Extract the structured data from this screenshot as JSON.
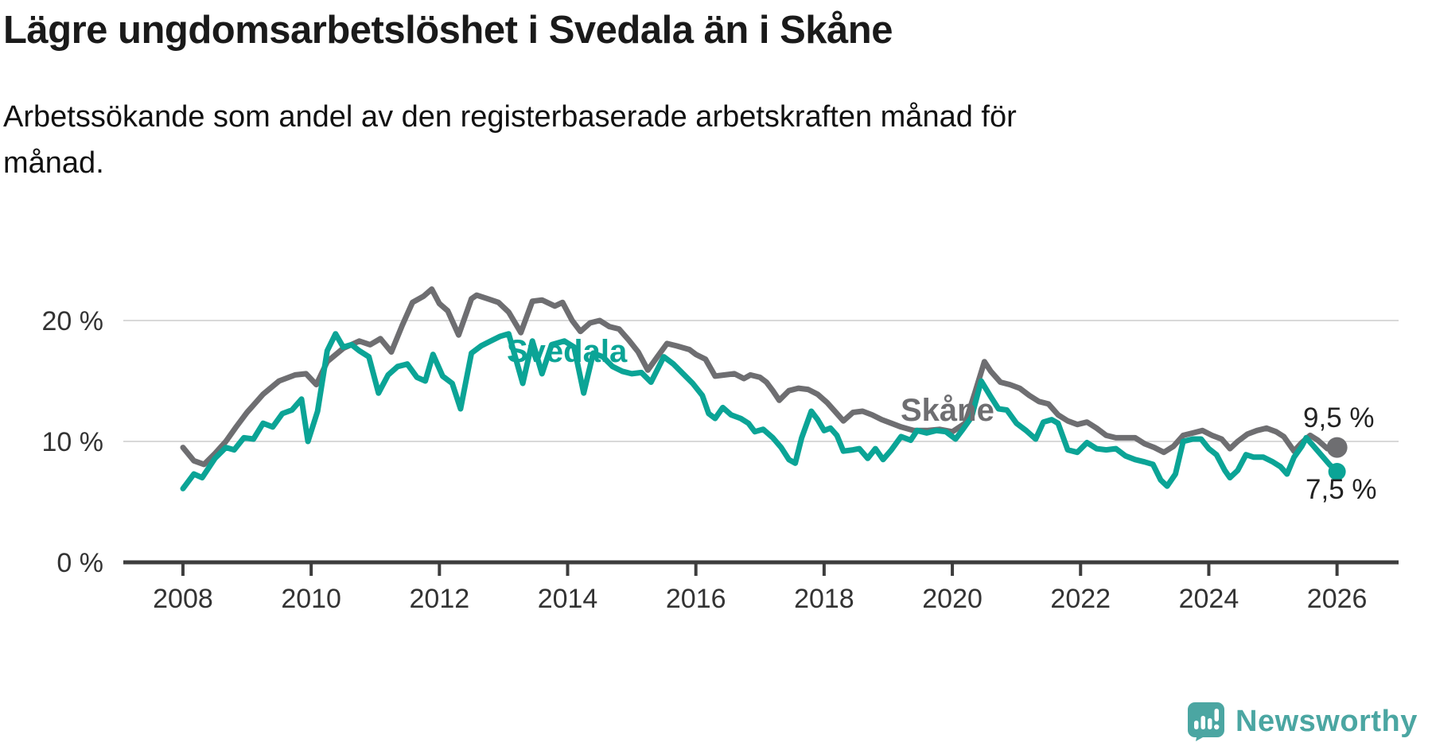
{
  "header": {
    "title": "Lägre ungdomsarbetslöshet i Svedala än i Skåne",
    "subtitle": "Arbetssökande som andel av den registerbaserade arbetskraften månad för månad.",
    "subtitle_lines": [
      "Arbetssökande som andel av den registerbaserade arbetskraften månad för",
      "månad."
    ]
  },
  "logo": {
    "text": "Newsworthy",
    "color": "#4ba6a2"
  },
  "colors": {
    "skane_line": "#6e6e71",
    "svedala_line": "#0ba496",
    "gridline": "#d9d9d9",
    "axis": "#3d3d3d",
    "tick_label": "#333333",
    "annotation_text": "#222222"
  },
  "chart_data": {
    "type": "line",
    "title": "Lägre ungdomsarbetslöshet i Svedala än i Skåne",
    "subtitle": "Arbetssökande som andel av den registerbaserade arbetskraften månad för månad.",
    "unit": "%",
    "grid": true,
    "legend_position": "inline-labels",
    "x_axis": {
      "ticks": [
        2008,
        2010,
        2012,
        2014,
        2016,
        2018,
        2020,
        2022,
        2024,
        2026
      ],
      "range": [
        2007.07,
        2026.96
      ]
    },
    "y_axis": {
      "ticks": [
        {
          "v": 0,
          "label": "0 %"
        },
        {
          "v": 10,
          "label": "10 %"
        },
        {
          "v": 20,
          "label": "20 %"
        }
      ],
      "gridlines": [
        10,
        20
      ],
      "range": [
        0,
        23.6
      ]
    },
    "series": [
      {
        "name": "Skåne",
        "line_label": "Skåne",
        "color": "#6e6e71",
        "end_label": "9,5 %",
        "end_value": 9.5,
        "points": [
          [
            2008.0,
            9.5
          ],
          [
            2008.17,
            8.4
          ],
          [
            2008.33,
            8.1
          ],
          [
            2008.5,
            9.0
          ],
          [
            2008.67,
            10.0
          ],
          [
            2008.83,
            11.2
          ],
          [
            2009.0,
            12.4
          ],
          [
            2009.25,
            13.9
          ],
          [
            2009.5,
            15.0
          ],
          [
            2009.75,
            15.5
          ],
          [
            2009.92,
            15.6
          ],
          [
            2010.08,
            14.7
          ],
          [
            2010.25,
            16.6
          ],
          [
            2010.5,
            17.7
          ],
          [
            2010.75,
            18.3
          ],
          [
            2010.92,
            18.0
          ],
          [
            2011.08,
            18.5
          ],
          [
            2011.25,
            17.4
          ],
          [
            2011.42,
            19.6
          ],
          [
            2011.58,
            21.5
          ],
          [
            2011.75,
            22.0
          ],
          [
            2011.88,
            22.6
          ],
          [
            2012.0,
            21.4
          ],
          [
            2012.13,
            20.8
          ],
          [
            2012.3,
            18.8
          ],
          [
            2012.5,
            21.8
          ],
          [
            2012.58,
            22.1
          ],
          [
            2012.75,
            21.8
          ],
          [
            2012.92,
            21.5
          ],
          [
            2013.08,
            20.7
          ],
          [
            2013.27,
            19.0
          ],
          [
            2013.45,
            21.6
          ],
          [
            2013.6,
            21.7
          ],
          [
            2013.8,
            21.2
          ],
          [
            2013.92,
            21.5
          ],
          [
            2014.07,
            20.0
          ],
          [
            2014.2,
            19.1
          ],
          [
            2014.35,
            19.8
          ],
          [
            2014.5,
            20.0
          ],
          [
            2014.65,
            19.5
          ],
          [
            2014.8,
            19.3
          ],
          [
            2014.95,
            18.4
          ],
          [
            2015.1,
            17.4
          ],
          [
            2015.25,
            15.9
          ],
          [
            2015.4,
            17.0
          ],
          [
            2015.55,
            18.1
          ],
          [
            2015.7,
            17.9
          ],
          [
            2015.9,
            17.6
          ],
          [
            2016.0,
            17.2
          ],
          [
            2016.15,
            16.8
          ],
          [
            2016.3,
            15.4
          ],
          [
            2016.45,
            15.5
          ],
          [
            2016.6,
            15.6
          ],
          [
            2016.75,
            15.2
          ],
          [
            2016.85,
            15.5
          ],
          [
            2017.0,
            15.3
          ],
          [
            2017.1,
            14.9
          ],
          [
            2017.2,
            14.2
          ],
          [
            2017.3,
            13.4
          ],
          [
            2017.45,
            14.2
          ],
          [
            2017.6,
            14.4
          ],
          [
            2017.75,
            14.3
          ],
          [
            2017.9,
            13.9
          ],
          [
            2018.05,
            13.2
          ],
          [
            2018.2,
            12.3
          ],
          [
            2018.3,
            11.7
          ],
          [
            2018.45,
            12.4
          ],
          [
            2018.6,
            12.5
          ],
          [
            2018.75,
            12.2
          ],
          [
            2018.9,
            11.8
          ],
          [
            2019.05,
            11.5
          ],
          [
            2019.2,
            11.2
          ],
          [
            2019.4,
            10.9
          ],
          [
            2019.6,
            10.9
          ],
          [
            2019.8,
            11.0
          ],
          [
            2020.0,
            10.8
          ],
          [
            2020.2,
            11.5
          ],
          [
            2020.35,
            14.0
          ],
          [
            2020.5,
            16.6
          ],
          [
            2020.6,
            15.8
          ],
          [
            2020.75,
            14.9
          ],
          [
            2020.9,
            14.7
          ],
          [
            2021.05,
            14.4
          ],
          [
            2021.2,
            13.8
          ],
          [
            2021.35,
            13.3
          ],
          [
            2021.5,
            13.1
          ],
          [
            2021.65,
            12.2
          ],
          [
            2021.8,
            11.7
          ],
          [
            2021.95,
            11.4
          ],
          [
            2022.1,
            11.6
          ],
          [
            2022.25,
            11.1
          ],
          [
            2022.4,
            10.5
          ],
          [
            2022.55,
            10.3
          ],
          [
            2022.7,
            10.3
          ],
          [
            2022.85,
            10.3
          ],
          [
            2023.0,
            9.8
          ],
          [
            2023.15,
            9.5
          ],
          [
            2023.3,
            9.1
          ],
          [
            2023.45,
            9.6
          ],
          [
            2023.6,
            10.5
          ],
          [
            2023.75,
            10.7
          ],
          [
            2023.9,
            10.9
          ],
          [
            2024.05,
            10.5
          ],
          [
            2024.2,
            10.2
          ],
          [
            2024.33,
            9.4
          ],
          [
            2024.45,
            10.0
          ],
          [
            2024.6,
            10.6
          ],
          [
            2024.75,
            10.9
          ],
          [
            2024.9,
            11.1
          ],
          [
            2025.05,
            10.8
          ],
          [
            2025.17,
            10.4
          ],
          [
            2025.33,
            9.2
          ],
          [
            2025.45,
            9.9
          ],
          [
            2025.58,
            10.5
          ],
          [
            2025.7,
            10.1
          ],
          [
            2025.85,
            9.4
          ],
          [
            2026.0,
            9.5
          ]
        ]
      },
      {
        "name": "Svedala",
        "line_label": "Svedala",
        "color": "#0ba496",
        "end_label": "7,5 %",
        "end_value": 7.5,
        "points": [
          [
            2008.0,
            6.1
          ],
          [
            2008.17,
            7.3
          ],
          [
            2008.3,
            7.0
          ],
          [
            2008.5,
            8.6
          ],
          [
            2008.67,
            9.5
          ],
          [
            2008.8,
            9.3
          ],
          [
            2008.95,
            10.3
          ],
          [
            2009.1,
            10.2
          ],
          [
            2009.25,
            11.5
          ],
          [
            2009.4,
            11.2
          ],
          [
            2009.55,
            12.3
          ],
          [
            2009.7,
            12.6
          ],
          [
            2009.85,
            13.5
          ],
          [
            2009.95,
            10.0
          ],
          [
            2010.1,
            12.5
          ],
          [
            2010.25,
            17.5
          ],
          [
            2010.38,
            18.9
          ],
          [
            2010.5,
            17.8
          ],
          [
            2010.63,
            18.0
          ],
          [
            2010.75,
            17.5
          ],
          [
            2010.9,
            17.0
          ],
          [
            2011.05,
            14.0
          ],
          [
            2011.2,
            15.5
          ],
          [
            2011.35,
            16.2
          ],
          [
            2011.5,
            16.4
          ],
          [
            2011.65,
            15.3
          ],
          [
            2011.78,
            15.0
          ],
          [
            2011.9,
            17.2
          ],
          [
            2012.05,
            15.4
          ],
          [
            2012.2,
            14.8
          ],
          [
            2012.33,
            12.7
          ],
          [
            2012.5,
            17.3
          ],
          [
            2012.65,
            17.9
          ],
          [
            2012.8,
            18.3
          ],
          [
            2012.95,
            18.7
          ],
          [
            2013.08,
            18.9
          ],
          [
            2013.3,
            14.8
          ],
          [
            2013.45,
            18.3
          ],
          [
            2013.6,
            15.6
          ],
          [
            2013.75,
            18.0
          ],
          [
            2013.95,
            18.3
          ],
          [
            2014.1,
            17.8
          ],
          [
            2014.25,
            14.0
          ],
          [
            2014.4,
            17.3
          ],
          [
            2014.55,
            17.0
          ],
          [
            2014.7,
            16.2
          ],
          [
            2014.85,
            15.8
          ],
          [
            2015.0,
            15.6
          ],
          [
            2015.15,
            15.7
          ],
          [
            2015.3,
            14.9
          ],
          [
            2015.5,
            17.0
          ],
          [
            2015.65,
            16.4
          ],
          [
            2015.8,
            15.6
          ],
          [
            2015.95,
            14.8
          ],
          [
            2016.1,
            13.8
          ],
          [
            2016.2,
            12.3
          ],
          [
            2016.3,
            11.9
          ],
          [
            2016.42,
            12.8
          ],
          [
            2016.55,
            12.2
          ],
          [
            2016.7,
            11.9
          ],
          [
            2016.82,
            11.5
          ],
          [
            2016.92,
            10.8
          ],
          [
            2017.05,
            11.0
          ],
          [
            2017.2,
            10.3
          ],
          [
            2017.33,
            9.5
          ],
          [
            2017.45,
            8.5
          ],
          [
            2017.55,
            8.2
          ],
          [
            2017.65,
            10.3
          ],
          [
            2017.8,
            12.5
          ],
          [
            2017.9,
            11.8
          ],
          [
            2018.0,
            10.9
          ],
          [
            2018.1,
            11.1
          ],
          [
            2018.2,
            10.5
          ],
          [
            2018.3,
            9.2
          ],
          [
            2018.45,
            9.3
          ],
          [
            2018.55,
            9.4
          ],
          [
            2018.68,
            8.6
          ],
          [
            2018.8,
            9.4
          ],
          [
            2018.92,
            8.5
          ],
          [
            2019.05,
            9.3
          ],
          [
            2019.2,
            10.4
          ],
          [
            2019.35,
            10.1
          ],
          [
            2019.45,
            10.9
          ],
          [
            2019.6,
            10.7
          ],
          [
            2019.75,
            10.9
          ],
          [
            2019.9,
            10.8
          ],
          [
            2020.05,
            10.2
          ],
          [
            2020.15,
            10.9
          ],
          [
            2020.3,
            12.0
          ],
          [
            2020.45,
            15.0
          ],
          [
            2020.6,
            13.7
          ],
          [
            2020.72,
            12.7
          ],
          [
            2020.85,
            12.6
          ],
          [
            2021.0,
            11.5
          ],
          [
            2021.15,
            10.9
          ],
          [
            2021.3,
            10.2
          ],
          [
            2021.42,
            11.6
          ],
          [
            2021.55,
            11.8
          ],
          [
            2021.65,
            11.5
          ],
          [
            2021.8,
            9.3
          ],
          [
            2021.95,
            9.1
          ],
          [
            2022.1,
            9.9
          ],
          [
            2022.25,
            9.4
          ],
          [
            2022.4,
            9.3
          ],
          [
            2022.55,
            9.4
          ],
          [
            2022.7,
            8.8
          ],
          [
            2022.85,
            8.5
          ],
          [
            2023.0,
            8.3
          ],
          [
            2023.13,
            8.1
          ],
          [
            2023.25,
            6.8
          ],
          [
            2023.35,
            6.3
          ],
          [
            2023.48,
            7.3
          ],
          [
            2023.6,
            10.0
          ],
          [
            2023.75,
            10.2
          ],
          [
            2023.88,
            10.2
          ],
          [
            2024.0,
            9.4
          ],
          [
            2024.12,
            8.9
          ],
          [
            2024.25,
            7.6
          ],
          [
            2024.33,
            7.0
          ],
          [
            2024.45,
            7.6
          ],
          [
            2024.58,
            8.9
          ],
          [
            2024.7,
            8.7
          ],
          [
            2024.85,
            8.7
          ],
          [
            2025.0,
            8.3
          ],
          [
            2025.12,
            7.9
          ],
          [
            2025.22,
            7.3
          ],
          [
            2025.33,
            8.7
          ],
          [
            2025.45,
            9.6
          ],
          [
            2025.52,
            10.3
          ],
          [
            2025.62,
            9.7
          ],
          [
            2025.75,
            8.9
          ],
          [
            2025.88,
            8.1
          ],
          [
            2026.0,
            7.5
          ]
        ]
      }
    ]
  }
}
